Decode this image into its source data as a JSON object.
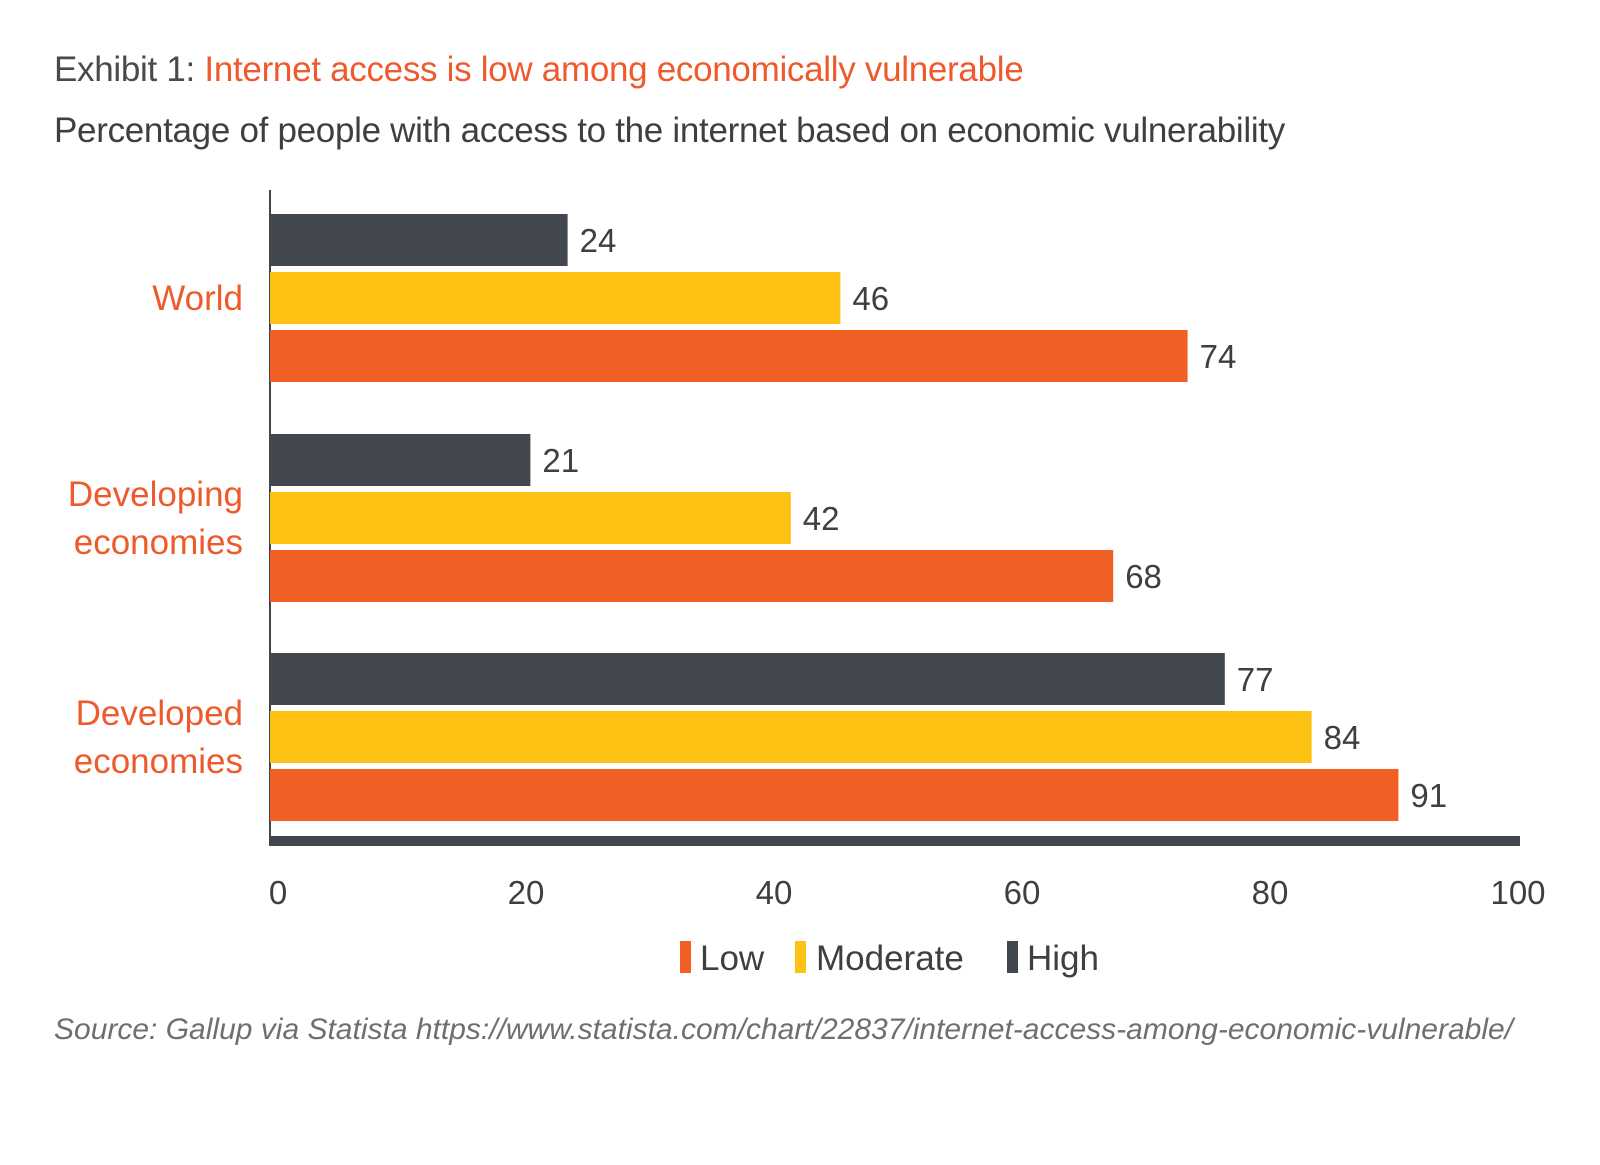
{
  "header": {
    "prefix": "Exhibit 1: ",
    "title": "Internet access is low among economically vulnerable",
    "subtitle": "Percentage of people with access to the internet based on economic vulnerability"
  },
  "colors": {
    "low": "#f05f24",
    "moderate": "#fcc113",
    "high": "#41474d",
    "category_label": "#ee5a2b",
    "axis": "#41474d",
    "text": "#3f3f3f"
  },
  "chart_data": {
    "type": "bar",
    "orientation": "horizontal",
    "categories": [
      "World",
      "Developing economies",
      "Developed economies"
    ],
    "category_label_lines": [
      [
        "World"
      ],
      [
        "Developing",
        "economies"
      ],
      [
        "Developed",
        "economies"
      ]
    ],
    "series": [
      {
        "name": "High",
        "color_key": "high",
        "values": [
          24,
          21,
          77
        ]
      },
      {
        "name": "Moderate",
        "color_key": "moderate",
        "values": [
          46,
          42,
          84
        ]
      },
      {
        "name": "Low",
        "color_key": "low",
        "values": [
          74,
          68,
          91
        ]
      }
    ],
    "legend_order": [
      "Low",
      "Moderate",
      "High"
    ],
    "legend_position": "bottom-center",
    "xlim": [
      0,
      100
    ],
    "xticks": [
      0,
      20,
      40,
      60,
      80,
      100
    ],
    "xlabel": "",
    "ylabel": "",
    "grid": false,
    "data_labels": true
  },
  "footer": {
    "source": "Source: Gallup via Statista https://www.statista.com/chart/22837/internet-access-among-economic-vulnerable/"
  }
}
